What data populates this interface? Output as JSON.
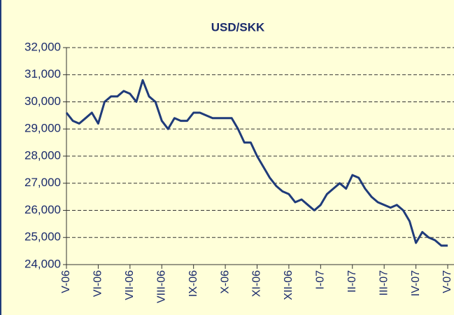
{
  "chart_data": {
    "type": "line",
    "title": "USD/SKK",
    "categories": [
      "V-06",
      null,
      null,
      null,
      null,
      "VI-06",
      null,
      null,
      null,
      null,
      "VII-06",
      null,
      null,
      null,
      null,
      "VIII-06",
      null,
      null,
      null,
      null,
      "IX-06",
      null,
      null,
      null,
      null,
      "X-06",
      null,
      null,
      null,
      null,
      "XI-06",
      null,
      null,
      null,
      null,
      "XII-06",
      null,
      null,
      null,
      null,
      "I-07",
      null,
      null,
      null,
      null,
      "II-07",
      null,
      null,
      null,
      null,
      "III-07",
      null,
      null,
      null,
      null,
      "IV-07",
      null,
      null,
      null,
      null,
      "V-07"
    ],
    "series": [
      {
        "name": "USD/SKK",
        "color": "#1f3b7a",
        "values": [
          29600,
          29300,
          29200,
          29400,
          29600,
          29200,
          30000,
          30200,
          30200,
          30400,
          30300,
          30000,
          30800,
          30200,
          30000,
          29300,
          29000,
          29400,
          29300,
          29300,
          29600,
          29600,
          29500,
          29400,
          29400,
          29400,
          29400,
          29000,
          28500,
          28500,
          28000,
          27600,
          27200,
          26900,
          26700,
          26600,
          26300,
          26400,
          26200,
          26000,
          26200,
          26600,
          26800,
          27000,
          26800,
          27300,
          27200,
          26800,
          26500,
          26300,
          26200,
          26100,
          26200,
          26000,
          25600,
          24800,
          25200,
          25000,
          24900,
          24700,
          24700
        ]
      }
    ],
    "ylim": [
      24000,
      32000
    ],
    "yticks": [
      {
        "value": 24000,
        "label": "24,000"
      },
      {
        "value": 25000,
        "label": "25,000"
      },
      {
        "value": 26000,
        "label": "26,000"
      },
      {
        "value": 27000,
        "label": "27,000"
      },
      {
        "value": 28000,
        "label": "28,000"
      },
      {
        "value": 29000,
        "label": "29,000"
      },
      {
        "value": 30000,
        "label": "30,000"
      },
      {
        "value": 31000,
        "label": "31,000"
      },
      {
        "value": 32000,
        "label": "32,000"
      }
    ],
    "grid": true
  }
}
